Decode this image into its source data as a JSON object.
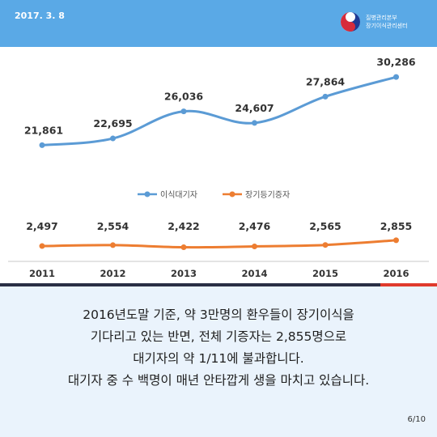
{
  "header": {
    "date": "2017. 3. 8",
    "org_line1": "질병관리본부",
    "org_line2": "장기이식관리센터"
  },
  "colors": {
    "header_bg": "#5aa9e6",
    "series_waiting": "#5b9bd5",
    "series_donors": "#ed7d31",
    "caption_bg": "#eaf3fc"
  },
  "chart_data": {
    "type": "line",
    "categories": [
      "2011",
      "2012",
      "2013",
      "2014",
      "2015",
      "2016"
    ],
    "series": [
      {
        "name": "이식대기자",
        "values": [
          21861,
          22695,
          26036,
          24607,
          27864,
          30286
        ],
        "labels": [
          "21,861",
          "22,695",
          "26,036",
          "24,607",
          "27,864",
          "30,286"
        ]
      },
      {
        "name": "장기등기증자",
        "values": [
          2497,
          2554,
          2422,
          2476,
          2565,
          2855
        ],
        "labels": [
          "2,497",
          "2,554",
          "2,422",
          "2,476",
          "2,565",
          "2,855"
        ]
      }
    ],
    "legend_position": "middle-center",
    "grid": false
  },
  "caption": {
    "lines": [
      "2016년도말 기준, 약 3만명의 환우들이 장기이식을",
      "기다리고 있는 반면, 전체 기증자는 2,855명으로",
      "대기자의 약 1/11에 불과합니다.",
      "대기자 중 수 백명이 매년 안타깝게 생을 마치고 있습니다."
    ]
  },
  "page_number": "6/10"
}
